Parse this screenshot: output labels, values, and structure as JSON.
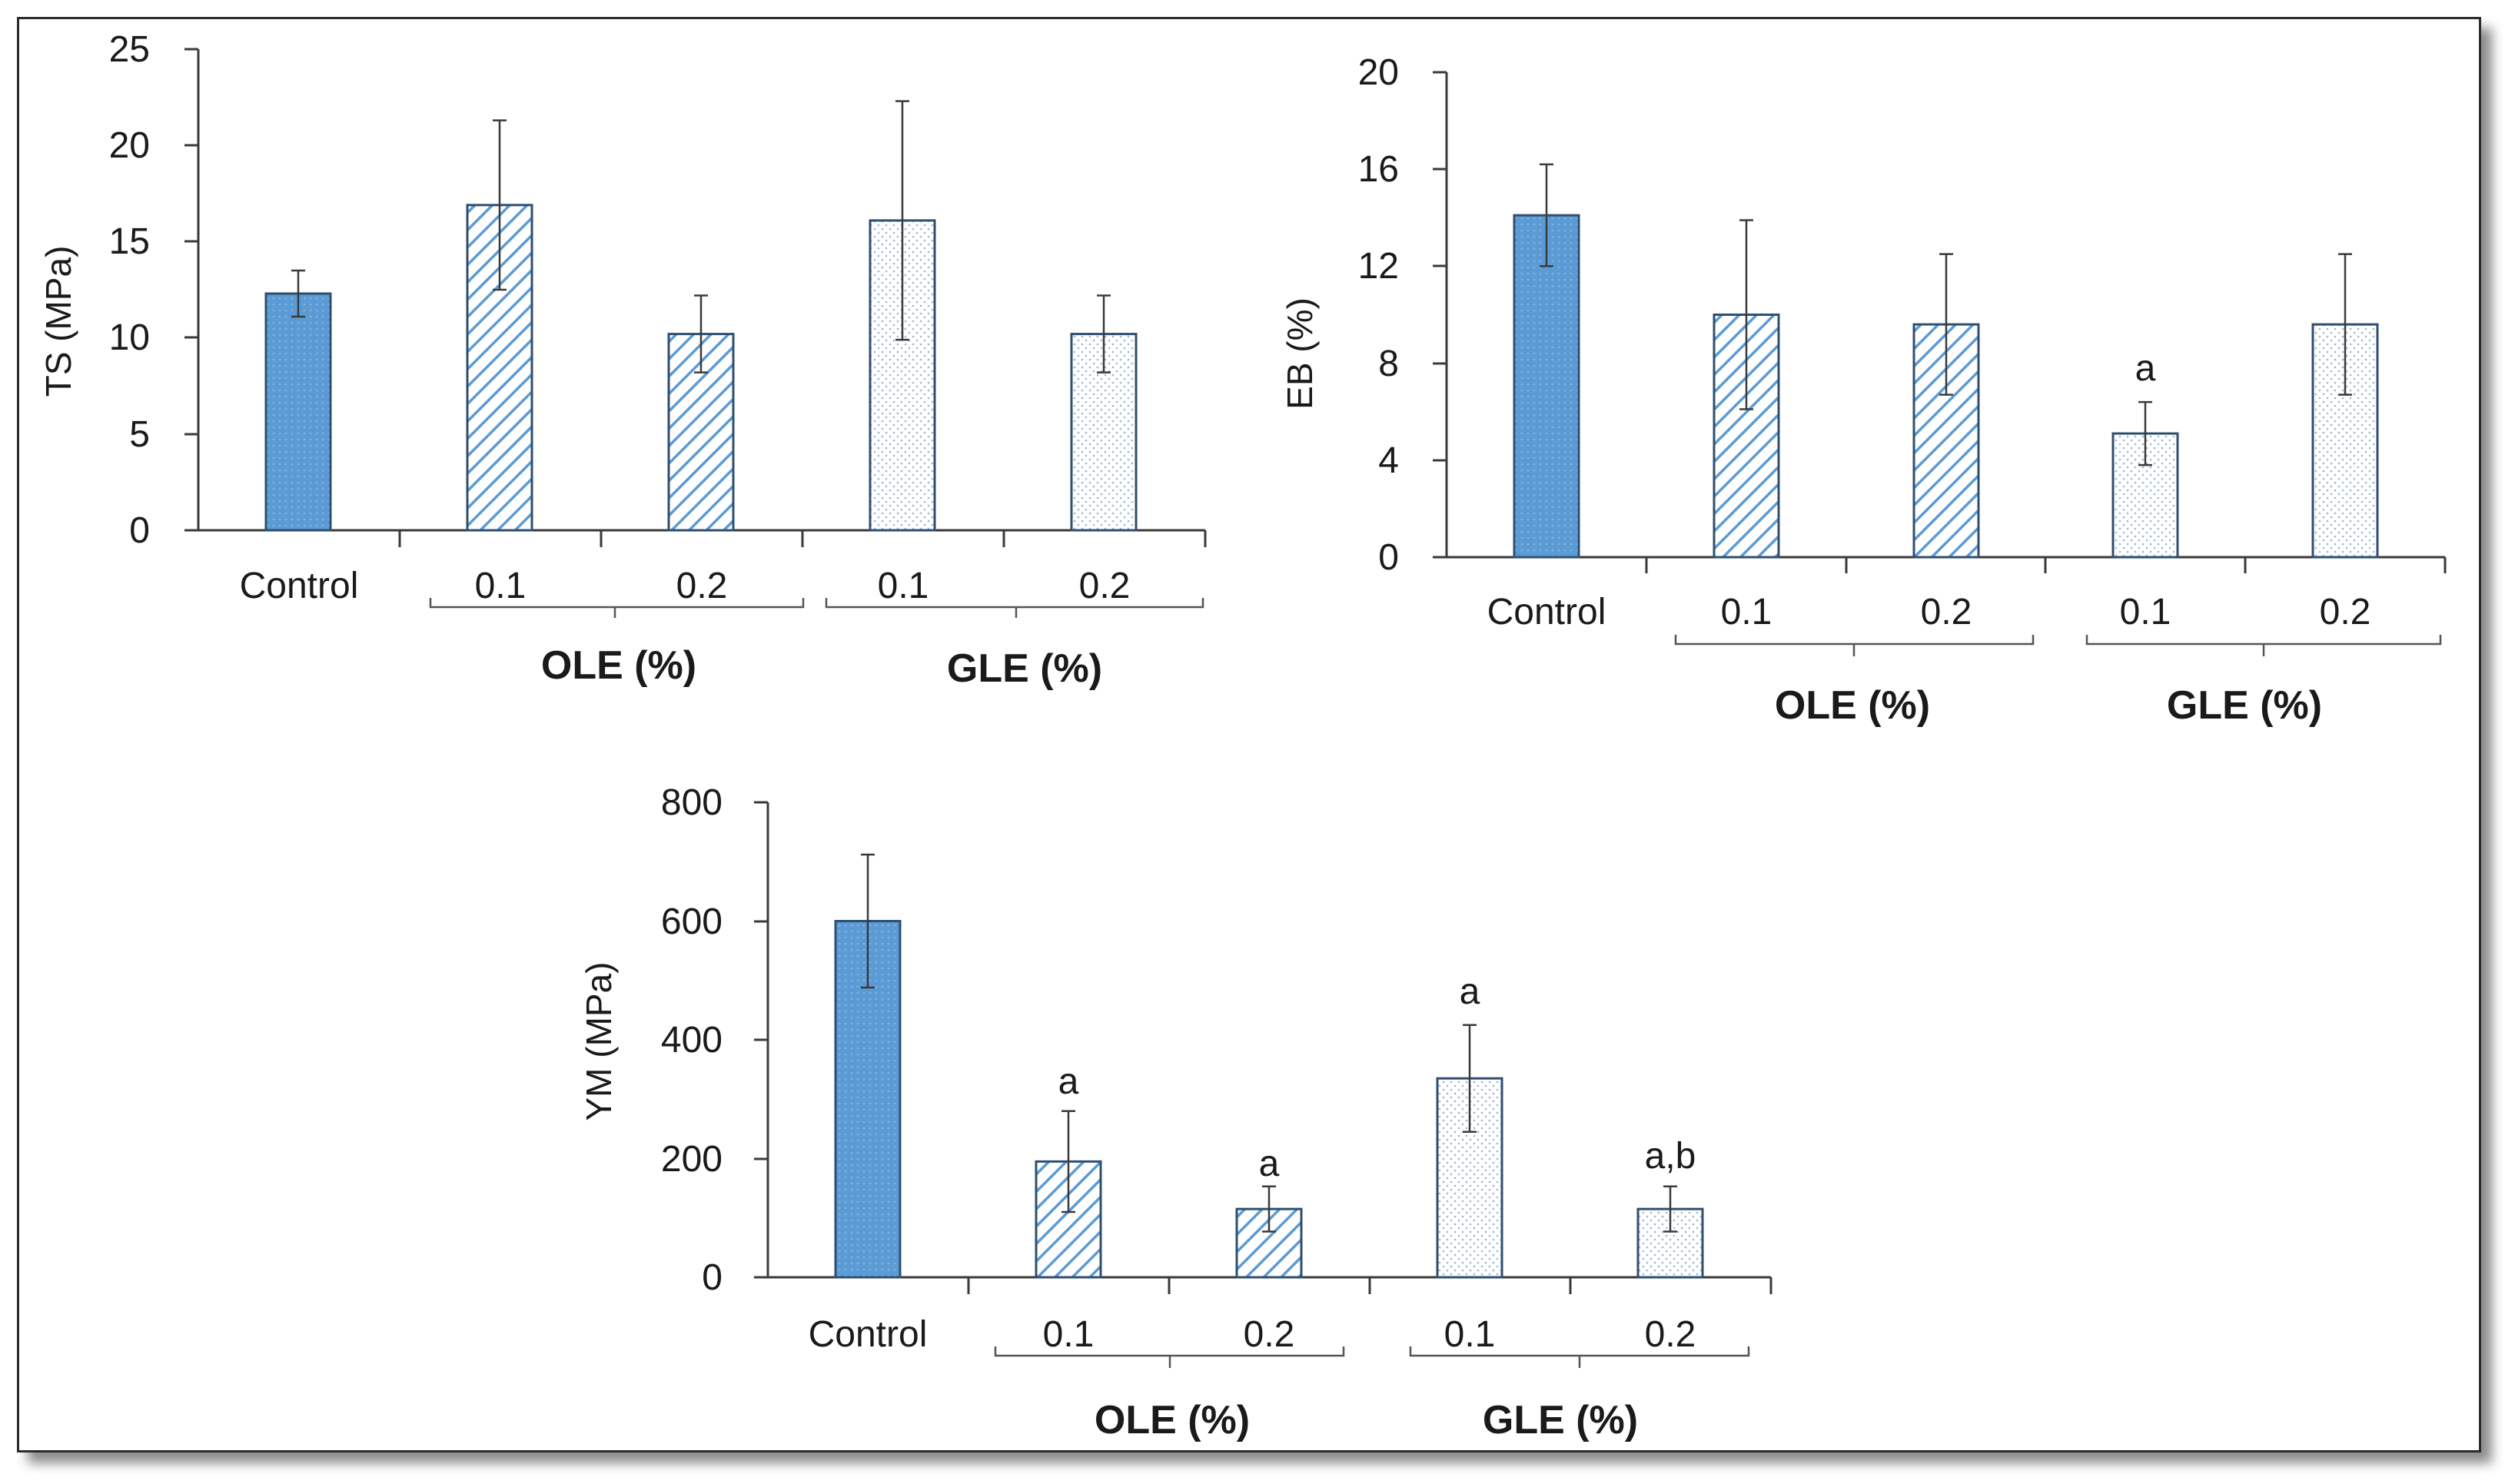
{
  "figure": {
    "panels": [
      {
        "id": "ts",
        "ylabel": "TS (MPa)",
        "ylim": [
          0,
          25
        ],
        "yticks": [
          "0",
          "5",
          "10",
          "15",
          "20",
          "25"
        ],
        "categories": [
          "Control",
          "0.1",
          "0.2",
          "0.1",
          "0.2"
        ],
        "groups": [
          "OLE (%)",
          "GLE (%)"
        ]
      },
      {
        "id": "eb",
        "ylabel": "EB (%)",
        "ylim": [
          0,
          20
        ],
        "yticks": [
          "0",
          "4",
          "8",
          "12",
          "16",
          "20"
        ],
        "categories": [
          "Control",
          "0.1",
          "0.2",
          "0.1",
          "0.2"
        ],
        "groups": [
          "OLE (%)",
          "GLE (%)"
        ],
        "letters": [
          "",
          "",
          "",
          "a",
          ""
        ]
      },
      {
        "id": "ym",
        "ylabel": "YM (MPa)",
        "ylim": [
          0,
          800
        ],
        "yticks": [
          "0",
          "200",
          "400",
          "600",
          "800"
        ],
        "categories": [
          "Control",
          "0.1",
          "0.2",
          "0.1",
          "0.2"
        ],
        "groups": [
          "OLE (%)",
          "GLE (%)"
        ],
        "letters": [
          "",
          "a",
          "a",
          "a",
          "a,b"
        ]
      }
    ]
  },
  "colors": {
    "control_fill": "#5b9bd5",
    "control_edge": "#2f4f6f",
    "ole_hatch": "#5b9bd5",
    "gle_dot": "#9ab7d3",
    "axis": "#3a3a3a"
  },
  "chart_data": [
    {
      "type": "bar",
      "ylabel": "TS (MPa)",
      "ylim": [
        0,
        25
      ],
      "categories": [
        "Control",
        "OLE 0.1",
        "OLE 0.2",
        "GLE 0.1",
        "GLE 0.2"
      ],
      "values": [
        12.3,
        16.9,
        10.2,
        16.1,
        10.2
      ],
      "errors": [
        1.2,
        4.4,
        2.0,
        6.2,
        2.0
      ]
    },
    {
      "type": "bar",
      "ylabel": "EB (%)",
      "ylim": [
        0,
        20
      ],
      "categories": [
        "Control",
        "OLE 0.1",
        "OLE 0.2",
        "GLE 0.1",
        "GLE 0.2"
      ],
      "values": [
        14.1,
        10.0,
        9.6,
        5.1,
        9.6
      ],
      "errors": [
        2.1,
        3.9,
        2.9,
        1.3,
        2.9
      ]
    },
    {
      "type": "bar",
      "ylabel": "YM (MPa)",
      "ylim": [
        0,
        800
      ],
      "categories": [
        "Control",
        "OLE 0.1",
        "OLE 0.2",
        "GLE 0.1",
        "GLE 0.2"
      ],
      "values": [
        600,
        195,
        115,
        335,
        115
      ],
      "errors": [
        112,
        85,
        38,
        90,
        38
      ]
    }
  ]
}
